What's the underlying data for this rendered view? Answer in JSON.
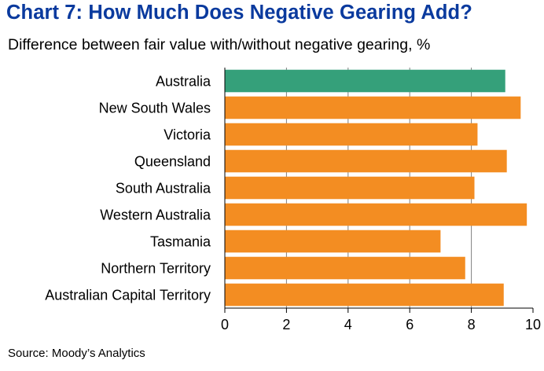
{
  "title": "Chart 7: How Much Does Negative Gearing Add?",
  "subtitle": "Difference between fair value with/without negative gearing, %",
  "source": "Source: Moody’s Analytics",
  "colors": {
    "highlight": "#35a07a",
    "bar": "#f38d22",
    "title": "#0a3a9e",
    "grid": "#7f7f7f"
  },
  "chart_data": {
    "type": "bar",
    "orientation": "horizontal",
    "categories": [
      "Australia",
      "New South Wales",
      "Victoria",
      "Queensland",
      "South Australia",
      "Western Australia",
      "Tasmania",
      "Northern Territory",
      "Australian Capital Territory"
    ],
    "values": [
      9.1,
      9.6,
      8.2,
      9.15,
      8.1,
      9.8,
      7.0,
      7.8,
      9.05
    ],
    "highlight_category": "Australia",
    "title": "Chart 7: How Much Does Negative Gearing Add?",
    "subtitle": "Difference between fair value with/without negative gearing, %",
    "xlabel": "",
    "ylabel": "",
    "xlim": [
      0,
      10
    ],
    "xticks": [
      "0",
      "2",
      "4",
      "6",
      "8",
      "10"
    ],
    "grid": "vertical"
  }
}
